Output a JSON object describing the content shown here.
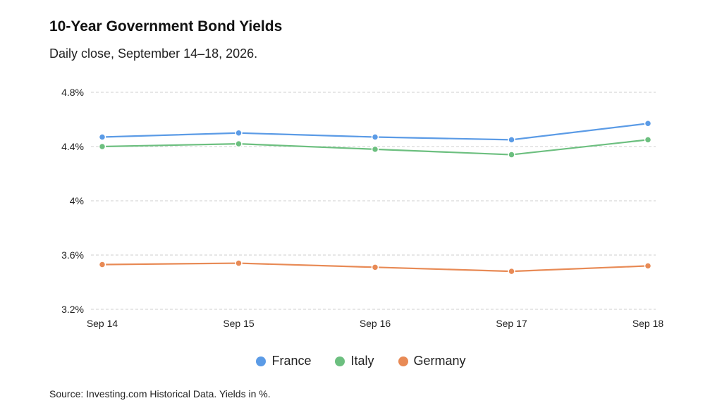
{
  "header": {
    "title": "10-Year Government Bond Yields",
    "subtitle": "Daily close, September 14–18, 2026."
  },
  "footer": {
    "source": "Source: Investing.com Historical Data. Yields in %."
  },
  "chart_data": {
    "type": "line",
    "title": "10-Year Government Bond Yields",
    "subtitle": "Daily close, September 14–18, 2026.",
    "xlabel": "",
    "ylabel": "",
    "categories": [
      "Sep 14",
      "Sep 15",
      "Sep 16",
      "Sep 17",
      "Sep 18"
    ],
    "ylim": [
      3.2,
      4.8
    ],
    "yticks": [
      3.2,
      3.6,
      4.0,
      4.4,
      4.8
    ],
    "ytick_labels": [
      "3.2%",
      "3.6%",
      "4%",
      "4.4%",
      "4.8%"
    ],
    "grid": true,
    "legend_position": "bottom",
    "series": [
      {
        "name": "France",
        "color": "#5b9be6",
        "values": [
          4.47,
          4.5,
          4.47,
          4.45,
          4.57
        ]
      },
      {
        "name": "Italy",
        "color": "#6cbf7f",
        "values": [
          4.4,
          4.42,
          4.38,
          4.34,
          4.45
        ]
      },
      {
        "name": "Germany",
        "color": "#e88a55",
        "values": [
          3.53,
          3.54,
          3.51,
          3.48,
          3.52
        ]
      }
    ]
  }
}
